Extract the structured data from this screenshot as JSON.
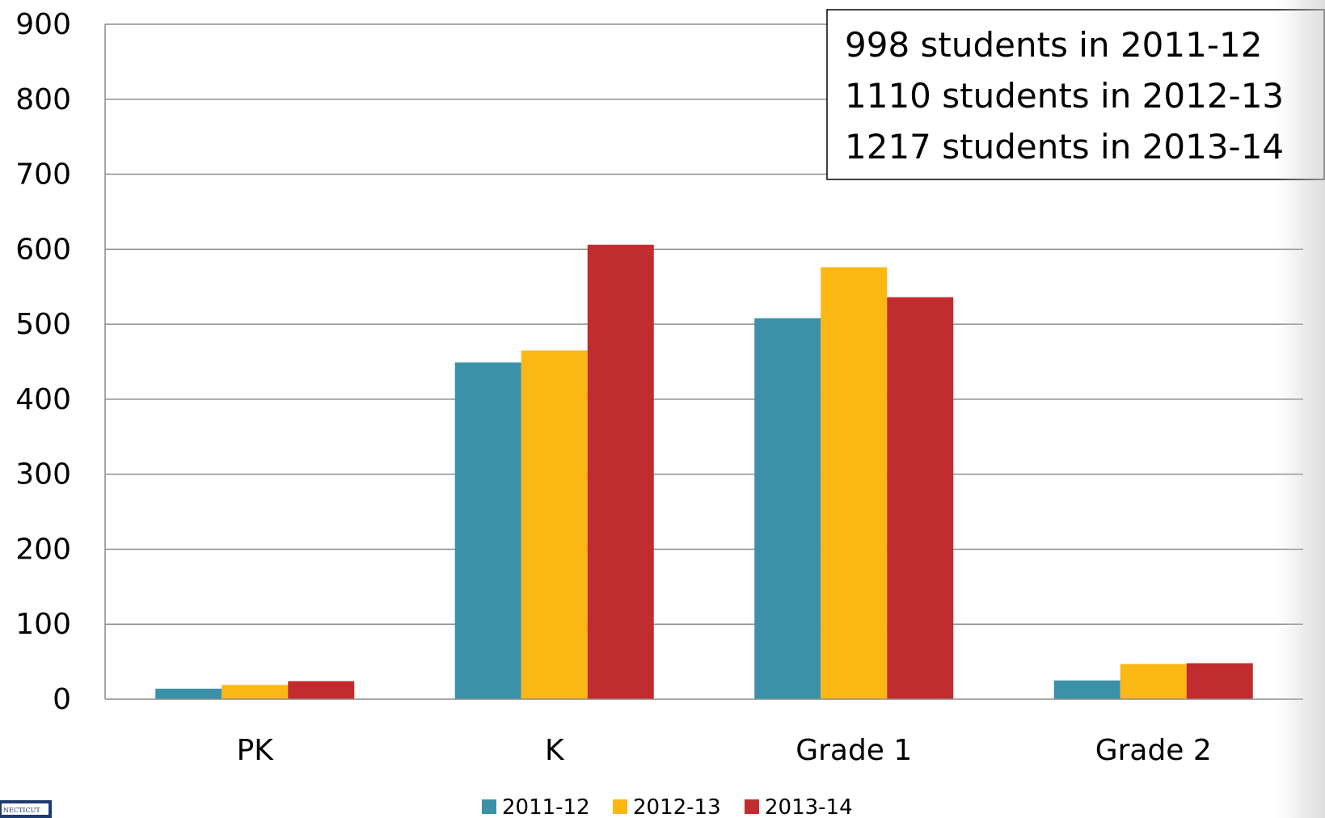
{
  "chart_data": {
    "type": "bar",
    "categories": [
      "PK",
      "K",
      "Grade 1",
      "Grade 2"
    ],
    "series": [
      {
        "name": "2011-12",
        "color": "#3a91a8",
        "values": [
          14,
          449,
          508,
          25
        ]
      },
      {
        "name": "2012-13",
        "color": "#fbb714",
        "values": [
          19,
          465,
          576,
          47
        ]
      },
      {
        "name": "2013-14",
        "color": "#c12c2f",
        "values": [
          24,
          606,
          536,
          48
        ]
      }
    ],
    "ylim": [
      0,
      900
    ],
    "yticks": [
      0,
      100,
      200,
      300,
      400,
      500,
      600,
      700,
      800,
      900
    ],
    "grid": true,
    "legend_position": "bottom",
    "annotation": {
      "lines": [
        "998 students in 2011-12",
        "1110 students in 2012-13",
        "1217 students in 2013-14"
      ],
      "position": "top-right"
    }
  },
  "logo_text": "NECTICUT"
}
